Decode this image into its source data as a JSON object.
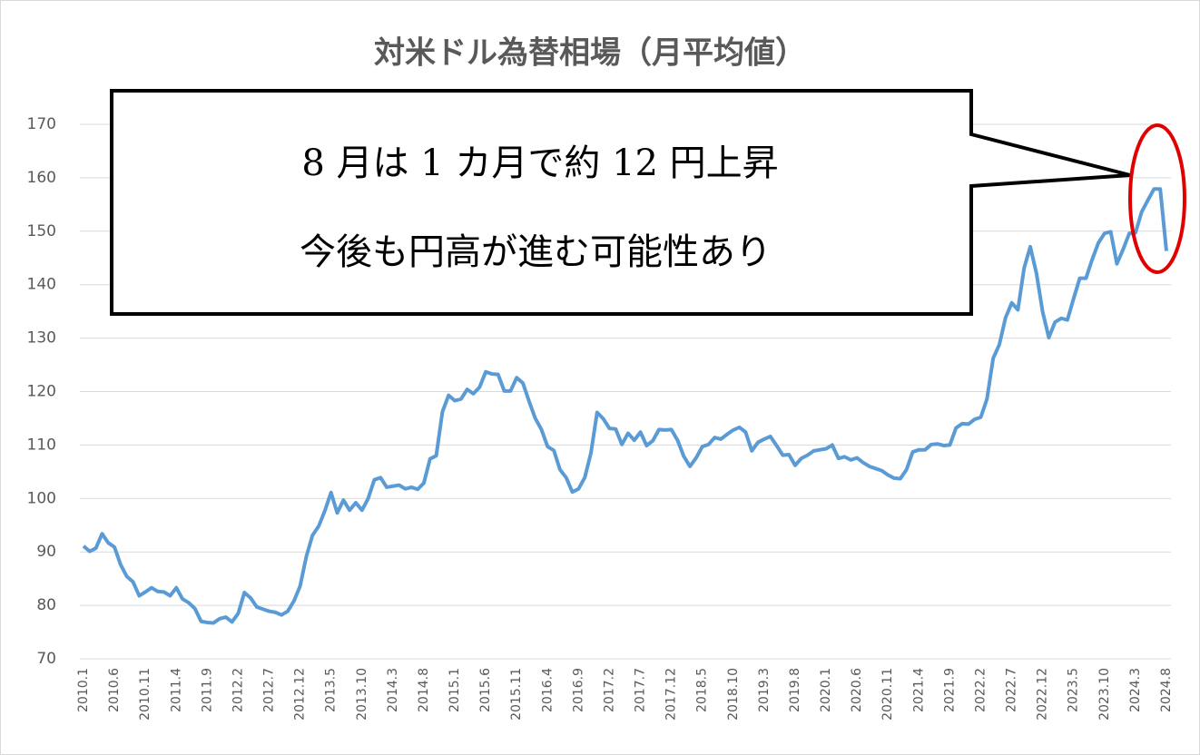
{
  "chart_data": {
    "type": "line",
    "title": "対米ドル為替相場（月平均値）",
    "annotations": [
      "8 月は 1 カ月で約 12 円上昇",
      "今後も円高が進む可能性あり"
    ],
    "categories": [
      "2010.1",
      null,
      null,
      null,
      null,
      "2010.6",
      null,
      null,
      null,
      null,
      "2010.11",
      null,
      null,
      null,
      null,
      "2011.4",
      null,
      null,
      null,
      null,
      "2011.9",
      null,
      null,
      null,
      null,
      "2012.2",
      null,
      null,
      null,
      null,
      "2012.7",
      null,
      null,
      null,
      null,
      "2012.12",
      null,
      null,
      null,
      null,
      "2013.5",
      null,
      null,
      null,
      null,
      "2013.10",
      null,
      null,
      null,
      null,
      "2014.3",
      null,
      null,
      null,
      null,
      "2014.8",
      null,
      null,
      null,
      null,
      "2015.1",
      null,
      null,
      null,
      null,
      "2015.6",
      null,
      null,
      null,
      null,
      "2015.11",
      null,
      null,
      null,
      null,
      "2016.4",
      null,
      null,
      null,
      null,
      "2016.9",
      null,
      null,
      null,
      null,
      "2017.2",
      null,
      null,
      null,
      null,
      "2017.7",
      null,
      null,
      null,
      null,
      "2017.12",
      null,
      null,
      null,
      null,
      "2018.5",
      null,
      null,
      null,
      null,
      "2018.10",
      null,
      null,
      null,
      null,
      "2019.3",
      null,
      null,
      null,
      null,
      "2019.8",
      null,
      null,
      null,
      null,
      "2020.1",
      null,
      null,
      null,
      null,
      "2020.6",
      null,
      null,
      null,
      null,
      "2020.11",
      null,
      null,
      null,
      null,
      "2021.4",
      null,
      null,
      null,
      null,
      "2021.9",
      null,
      null,
      null,
      null,
      "2022.2",
      null,
      null,
      null,
      null,
      "2022.7",
      null,
      null,
      null,
      null,
      "2022.12",
      null,
      null,
      null,
      null,
      "2023.5",
      null,
      null,
      null,
      null,
      "2023.10",
      null,
      null,
      null,
      null,
      "2024.3",
      null,
      null,
      null,
      null,
      "2024.8"
    ],
    "values": [
      91.1,
      90.1,
      90.7,
      93.4,
      91.7,
      90.9,
      87.6,
      85.4,
      84.4,
      81.8,
      82.5,
      83.3,
      82.6,
      82.5,
      81.8,
      83.3,
      81.2,
      80.5,
      79.4,
      77.0,
      76.8,
      76.7,
      77.5,
      77.8,
      76.9,
      78.5,
      82.4,
      81.4,
      79.7,
      79.3,
      78.9,
      78.7,
      78.2,
      78.9,
      80.8,
      83.6,
      89.1,
      93.1,
      94.8,
      97.7,
      101.1,
      97.3,
      99.7,
      97.8,
      99.2,
      97.8,
      100.0,
      103.5,
      103.9,
      102.1,
      102.3,
      102.5,
      101.8,
      102.1,
      101.7,
      102.9,
      107.4,
      108.0,
      116.2,
      119.3,
      118.3,
      118.6,
      120.4,
      119.6,
      120.8,
      123.7,
      123.3,
      123.2,
      120.1,
      120.1,
      122.6,
      121.6,
      118.2,
      115.0,
      112.9,
      109.7,
      109.0,
      105.4,
      103.9,
      101.2,
      101.8,
      103.9,
      108.5,
      116.1,
      114.9,
      113.1,
      113.0,
      110.1,
      112.2,
      110.9,
      112.4,
      109.9,
      110.8,
      112.9,
      112.8,
      112.9,
      110.9,
      107.9,
      106.0,
      107.6,
      109.7,
      110.1,
      111.4,
      111.1,
      112.0,
      112.8,
      113.3,
      112.4,
      108.9,
      110.5,
      111.1,
      111.6,
      109.9,
      108.1,
      108.2,
      106.2,
      107.5,
      108.1,
      108.9,
      109.1,
      109.3,
      110.0,
      107.5,
      107.8,
      107.2,
      107.6,
      106.7,
      106.0,
      105.6,
      105.2,
      104.4,
      103.8,
      103.7,
      105.4,
      108.7,
      109.1,
      109.1,
      110.1,
      110.2,
      109.9,
      110.0,
      113.2,
      114.0,
      113.9,
      114.8,
      115.2,
      118.6,
      126.2,
      128.8,
      133.8,
      136.6,
      135.3,
      143.1,
      147.1,
      142.1,
      134.9,
      130.1,
      133.0,
      133.7,
      133.4,
      137.4,
      141.2,
      141.2,
      144.7,
      147.8,
      149.6,
      149.9,
      143.9,
      146.6,
      149.6,
      149.7,
      153.6,
      155.8,
      157.9,
      157.9,
      146.3
    ],
    "color": "#5b9bd5",
    "ylim": [
      70,
      170
    ],
    "yticks": [
      70,
      80,
      90,
      100,
      110,
      120,
      130,
      140,
      150,
      160,
      170
    ],
    "grid": true
  }
}
